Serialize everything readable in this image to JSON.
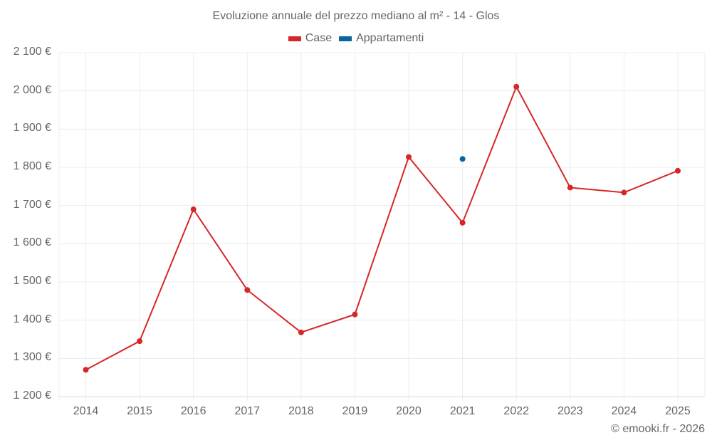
{
  "chart_data": {
    "type": "line",
    "title": "Evoluzione annuale del prezzo mediano al m² - 14 - Glos",
    "xlabel": "",
    "ylabel": "",
    "categories": [
      "2014",
      "2015",
      "2016",
      "2017",
      "2018",
      "2019",
      "2020",
      "2021",
      "2022",
      "2023",
      "2024",
      "2025"
    ],
    "series": [
      {
        "name": "Case",
        "color": "#d62728",
        "values": [
          1270,
          1345,
          1690,
          1479,
          1368,
          1415,
          1827,
          1655,
          2011,
          1747,
          1734,
          1791
        ]
      },
      {
        "name": "Appartamenti",
        "color": "#0a64a0",
        "values": [
          null,
          null,
          null,
          null,
          null,
          null,
          null,
          1822,
          null,
          null,
          null,
          null
        ]
      }
    ],
    "ylim": [
      1200,
      2100
    ],
    "yticks": [
      1200,
      1300,
      1400,
      1500,
      1600,
      1700,
      1800,
      1900,
      2000,
      2100
    ],
    "ytick_labels": [
      "1 200 €",
      "1 300 €",
      "1 400 €",
      "1 500 €",
      "1 600 €",
      "1 700 €",
      "1 800 €",
      "1 900 €",
      "2 000 €",
      "2 100 €"
    ],
    "grid": true,
    "legend_position": "top"
  },
  "legend": [
    {
      "label": "Case",
      "color": "#d62728"
    },
    {
      "label": "Appartamenti",
      "color": "#0a64a0"
    }
  ],
  "credit": "© emooki.fr - 2026"
}
